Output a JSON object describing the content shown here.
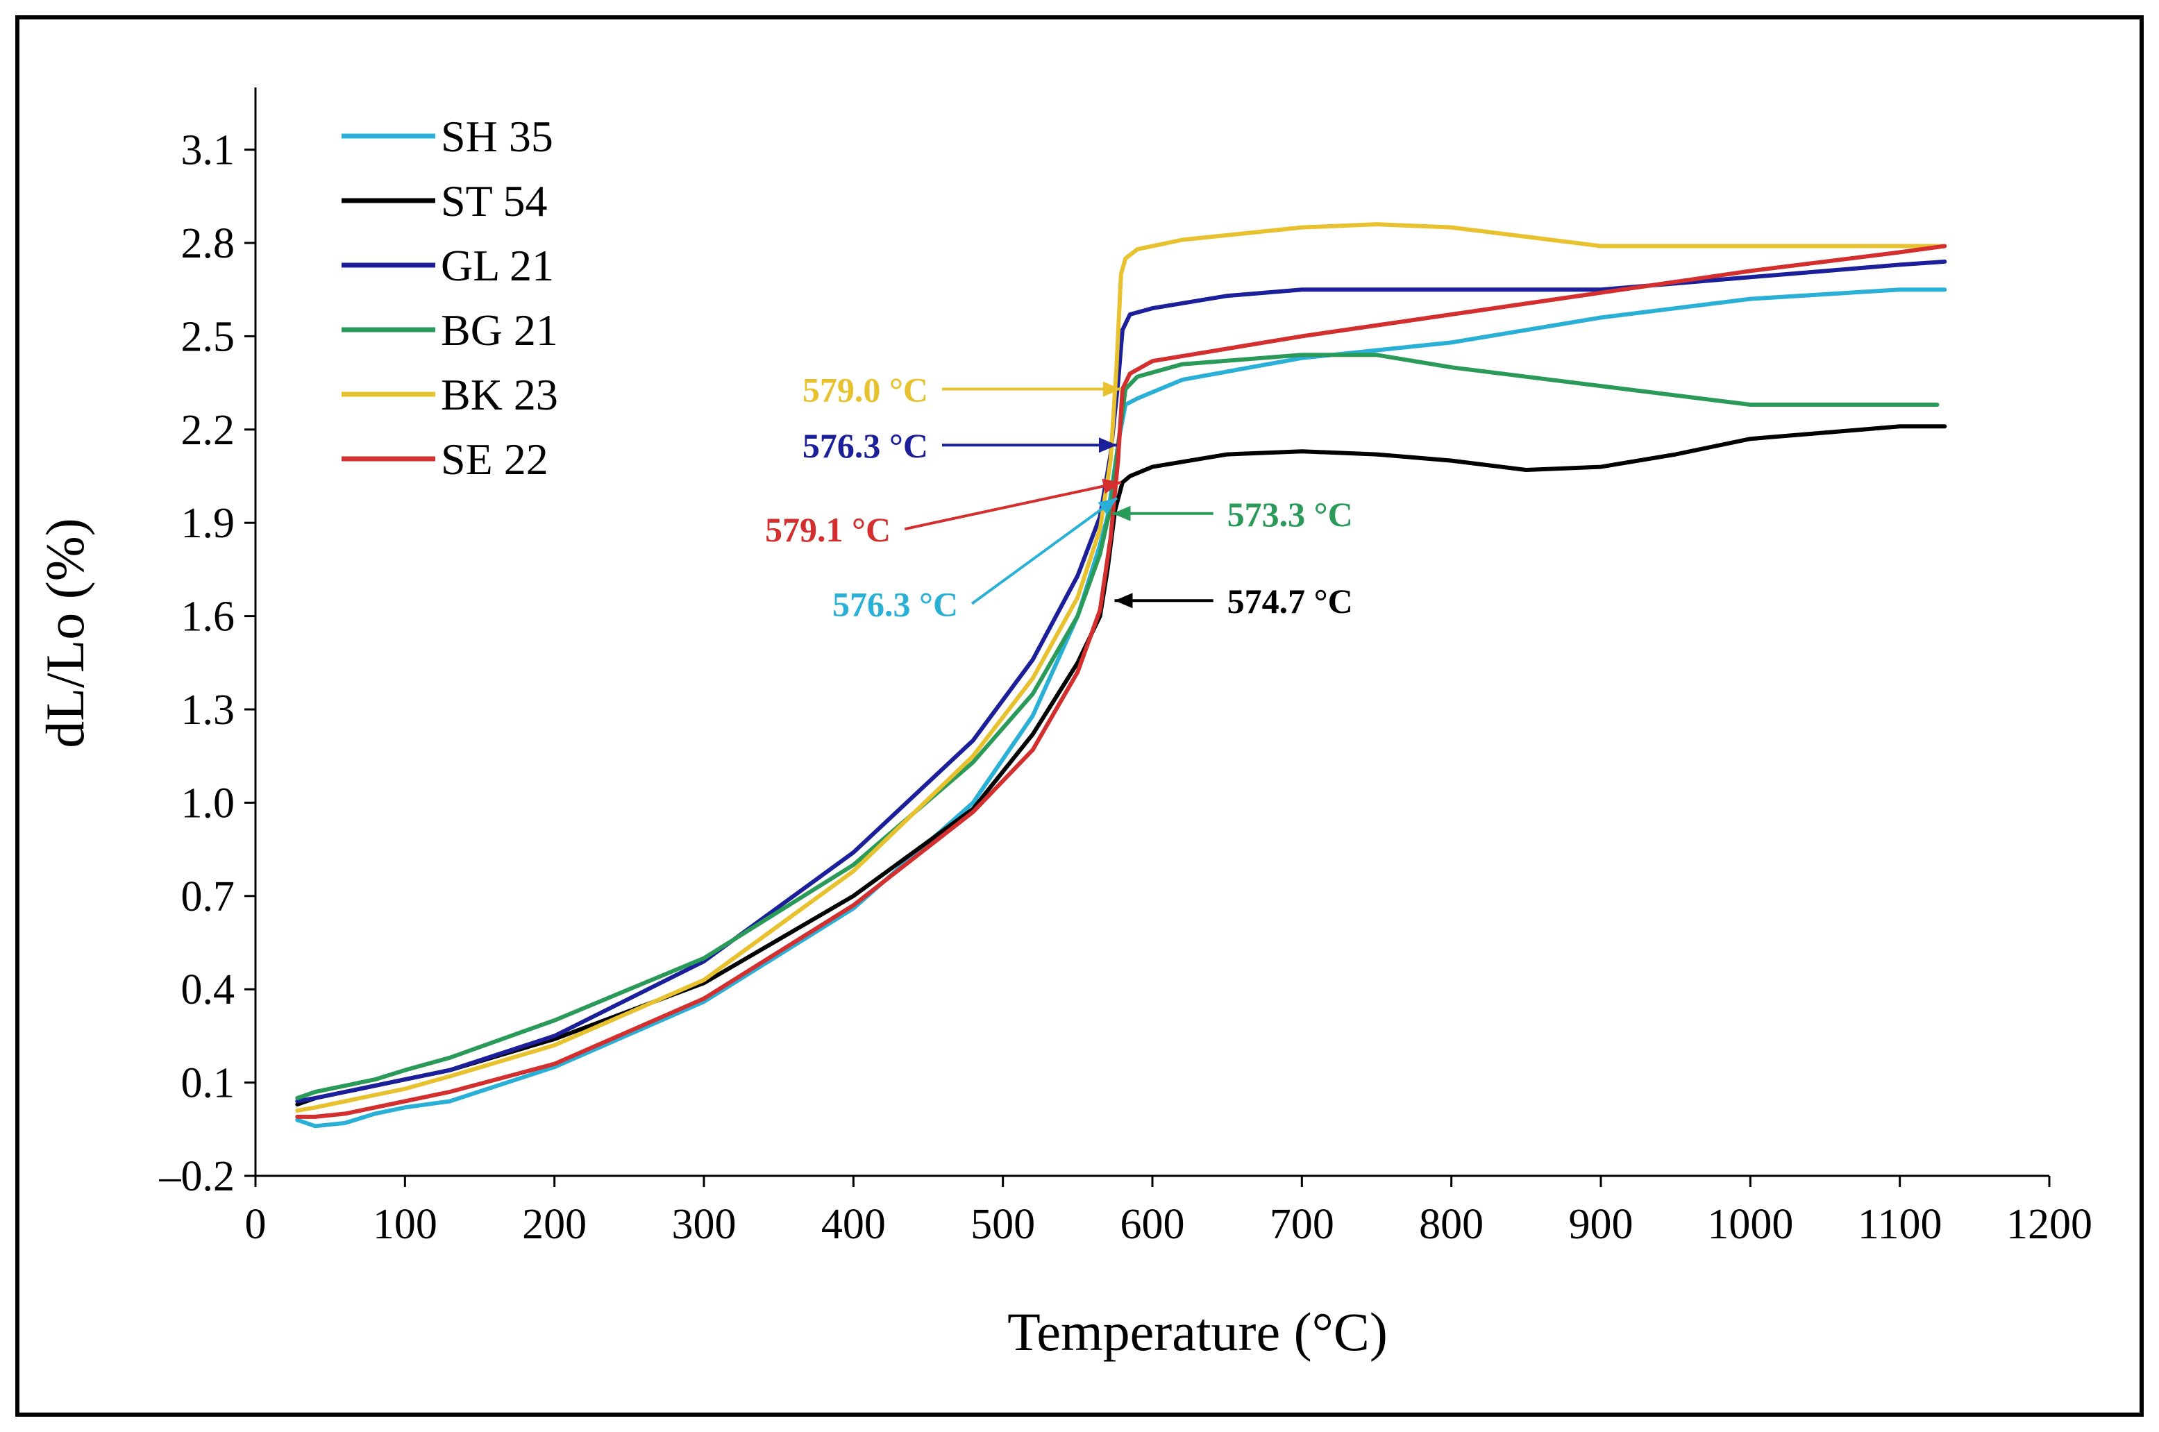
{
  "chart_data": {
    "type": "line",
    "title": "",
    "xlabel": "Temperature (°C)",
    "ylabel": "dL/Lo (%)",
    "xlim": [
      0,
      1200
    ],
    "ylim": [
      -0.2,
      3.3
    ],
    "xticks": [
      0,
      100,
      200,
      300,
      400,
      500,
      600,
      700,
      800,
      900,
      1000,
      1100,
      1200
    ],
    "xtick_labels": [
      "0",
      "100",
      "200",
      "300",
      "400",
      "500",
      "600",
      "700",
      "800",
      "900",
      "1000",
      "1100",
      "1200"
    ],
    "yticks": [
      -0.2,
      0.1,
      0.4,
      0.7,
      1.0,
      1.3,
      1.6,
      1.9,
      2.2,
      2.5,
      2.8,
      3.1
    ],
    "ytick_labels": [
      "–0.2",
      "0.1",
      "0.4",
      "0.7",
      "1.0",
      "1.3",
      "1.6",
      "1.9",
      "2.2",
      "2.5",
      "2.8",
      "3.1"
    ],
    "grid": false,
    "legend_position": "top-left",
    "series": [
      {
        "name": "SH 35",
        "color": "#2ab0d6",
        "x": [
          28,
          40,
          60,
          80,
          100,
          130,
          200,
          300,
          400,
          480,
          520,
          550,
          565,
          570,
          574,
          578,
          582,
          590,
          620,
          700,
          800,
          900,
          1000,
          1100,
          1130
        ],
        "y": [
          -0.02,
          -0.04,
          -0.03,
          0.0,
          0.02,
          0.04,
          0.15,
          0.36,
          0.66,
          1.0,
          1.28,
          1.6,
          1.83,
          1.92,
          2.05,
          2.18,
          2.28,
          2.3,
          2.36,
          2.43,
          2.48,
          2.56,
          2.62,
          2.65,
          2.65
        ]
      },
      {
        "name": "ST 54",
        "color": "#000000",
        "x": [
          28,
          40,
          60,
          80,
          100,
          130,
          200,
          300,
          400,
          480,
          520,
          550,
          565,
          570,
          575,
          580,
          585,
          600,
          650,
          700,
          750,
          800,
          850,
          900,
          950,
          1000,
          1050,
          1100,
          1130
        ],
        "y": [
          0.03,
          0.05,
          0.07,
          0.09,
          0.11,
          0.14,
          0.24,
          0.42,
          0.7,
          0.98,
          1.22,
          1.45,
          1.6,
          1.75,
          1.94,
          2.03,
          2.05,
          2.08,
          2.12,
          2.13,
          2.12,
          2.1,
          2.07,
          2.08,
          2.12,
          2.17,
          2.19,
          2.21,
          2.21
        ]
      },
      {
        "name": "GL 21",
        "color": "#1b1f99",
        "x": [
          28,
          40,
          60,
          80,
          100,
          130,
          200,
          300,
          400,
          480,
          520,
          550,
          565,
          572,
          577,
          580,
          585,
          600,
          650,
          700,
          800,
          900,
          1000,
          1100,
          1130
        ],
        "y": [
          0.04,
          0.05,
          0.07,
          0.09,
          0.11,
          0.14,
          0.25,
          0.49,
          0.84,
          1.2,
          1.46,
          1.73,
          1.92,
          2.12,
          2.35,
          2.52,
          2.57,
          2.59,
          2.63,
          2.65,
          2.65,
          2.65,
          2.69,
          2.73,
          2.74
        ]
      },
      {
        "name": "BG 21",
        "color": "#2a9a59",
        "x": [
          28,
          40,
          60,
          80,
          100,
          130,
          200,
          300,
          400,
          480,
          520,
          550,
          565,
          572,
          577,
          582,
          590,
          620,
          700,
          750,
          800,
          900,
          1000,
          1100,
          1125
        ],
        "y": [
          0.05,
          0.07,
          0.09,
          0.11,
          0.14,
          0.18,
          0.3,
          0.5,
          0.8,
          1.13,
          1.35,
          1.6,
          1.8,
          1.95,
          2.15,
          2.33,
          2.37,
          2.41,
          2.44,
          2.44,
          2.4,
          2.34,
          2.28,
          2.28,
          2.28
        ]
      },
      {
        "name": "BK 23",
        "color": "#e8c12e",
        "x": [
          28,
          40,
          60,
          80,
          100,
          130,
          200,
          300,
          400,
          480,
          520,
          550,
          565,
          572,
          576,
          579,
          582,
          590,
          620,
          700,
          750,
          800,
          850,
          900,
          950,
          1000,
          1050,
          1100,
          1130
        ],
        "y": [
          0.01,
          0.02,
          0.04,
          0.06,
          0.08,
          0.12,
          0.22,
          0.43,
          0.78,
          1.15,
          1.4,
          1.66,
          1.88,
          2.1,
          2.4,
          2.7,
          2.75,
          2.78,
          2.81,
          2.85,
          2.86,
          2.85,
          2.82,
          2.79,
          2.79,
          2.79,
          2.79,
          2.79,
          2.79
        ]
      },
      {
        "name": "SE 22",
        "color": "#d32f2f",
        "x": [
          28,
          40,
          60,
          80,
          100,
          130,
          200,
          300,
          400,
          480,
          520,
          550,
          565,
          572,
          577,
          580,
          585,
          600,
          650,
          700,
          800,
          900,
          1000,
          1100,
          1130
        ],
        "y": [
          -0.01,
          -0.01,
          0.0,
          0.02,
          0.04,
          0.07,
          0.16,
          0.37,
          0.67,
          0.97,
          1.17,
          1.42,
          1.62,
          1.85,
          2.1,
          2.33,
          2.38,
          2.42,
          2.46,
          2.5,
          2.57,
          2.64,
          2.71,
          2.77,
          2.79
        ]
      }
    ],
    "annotations": [
      {
        "text": "579.0 °C",
        "color": "#e8c12e",
        "series": "BK 23",
        "x": 579.0,
        "y": 2.33,
        "label_x": 450,
        "label_y": 2.33,
        "label_side": "left"
      },
      {
        "text": "576.3 °C",
        "color": "#1b1f99",
        "series": "GL 21",
        "x": 576.3,
        "y": 2.15,
        "label_x": 450,
        "label_y": 2.15,
        "label_side": "left"
      },
      {
        "text": "579.1 °C",
        "color": "#d32f2f",
        "series": "SE 22",
        "x": 579.1,
        "y": 2.03,
        "label_x": 425,
        "label_y": 1.88,
        "label_side": "left"
      },
      {
        "text": "573.3 °C",
        "color": "#2a9a59",
        "series": "BG 21",
        "x": 573.3,
        "y": 1.93,
        "label_x": 650,
        "label_y": 1.93,
        "label_side": "right"
      },
      {
        "text": "576.3 °C",
        "color": "#2ab0d6",
        "series": "SH 35",
        "x": 576.3,
        "y": 1.98,
        "label_x": 470,
        "label_y": 1.64,
        "label_side": "left"
      },
      {
        "text": "574.7 °C",
        "color": "#000000",
        "series": "ST 54",
        "x": 574.7,
        "y": 1.65,
        "label_x": 650,
        "label_y": 1.65,
        "label_side": "right"
      }
    ]
  }
}
